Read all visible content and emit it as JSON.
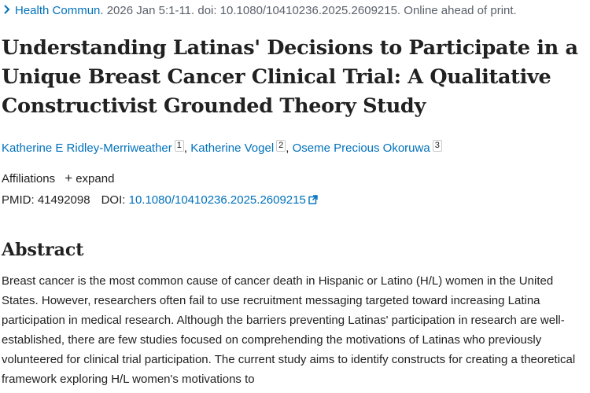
{
  "citation": {
    "journal": "Health Commun.",
    "details": " 2026 Jan 5:1-11. doi: 10.1080/10410236.2025.2609215. Online ahead of print."
  },
  "article": {
    "title": "Understanding Latinas' Decisions to Participate in a Unique Breast Cancer Clinical Trial: A Qualitative Constructivist Grounded Theory Study"
  },
  "authors": [
    {
      "name": "Katherine E Ridley-Merriweather",
      "aff": "1"
    },
    {
      "name": "Katherine Vogel",
      "aff": "2"
    },
    {
      "name": "Oseme Precious Okoruwa",
      "aff": "3"
    }
  ],
  "affiliations": {
    "label": "Affiliations",
    "expand_label": "expand"
  },
  "identifiers": {
    "pmid_label": "PMID:",
    "pmid": "41492098",
    "doi_label": "DOI:",
    "doi": "10.1080/10410236.2025.2609215"
  },
  "abstract": {
    "heading": "Abstract",
    "text": "Breast cancer is the most common cause of cancer death in Hispanic or Latino (H/L) women in the United States. However, researchers often fail to use recruitment messaging targeted toward increasing Latina participation in medical research. Although the barriers preventing Latinas' participation in research are well-established, there are few studies focused on comprehending the motivations of Latinas who previously volunteered for clinical trial participation. The current study aims to identify constructs for creating a theoretical framework exploring H/L women's motivations to"
  },
  "colors": {
    "link": "#0071bc",
    "text": "#212121",
    "muted": "#5b616b"
  },
  "icons": {
    "chevron": "chevron-right-icon",
    "plus": "plus-icon",
    "external": "external-link-icon"
  }
}
